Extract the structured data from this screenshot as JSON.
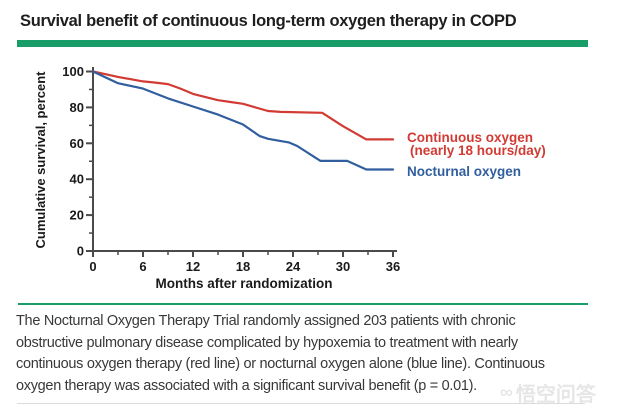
{
  "header": {
    "title": "Survival benefit of continuous long-term oxygen therapy in COPD"
  },
  "chart_data": {
    "type": "line",
    "title": "",
    "xlabel": "Months after randomization",
    "ylabel": "Cumulative survival, percent",
    "xlim": [
      0,
      36
    ],
    "ylim": [
      0,
      100
    ],
    "xticks_major": [
      0,
      6,
      12,
      18,
      24,
      30,
      36
    ],
    "xticks_minor": [
      3,
      9,
      15,
      21,
      27,
      33
    ],
    "yticks_major": [
      0,
      20,
      40,
      60,
      80,
      100
    ],
    "yticks_minor": [
      10,
      30,
      50,
      70,
      90
    ],
    "grid": false,
    "legend_position": "right of line ends",
    "series": [
      {
        "name": "Continuous oxygen (nearly 18 hours/day)",
        "legend_lines": [
          "Continuous oxygen",
          "(nearly 18 hours/day)"
        ],
        "color": "#d23b33",
        "points": [
          [
            0,
            100
          ],
          [
            1.5,
            98.5
          ],
          [
            3,
            97
          ],
          [
            6,
            94.5
          ],
          [
            7.5,
            93.8
          ],
          [
            9,
            93
          ],
          [
            10.5,
            90.5
          ],
          [
            12,
            87.5
          ],
          [
            15,
            84
          ],
          [
            16.5,
            83
          ],
          [
            18,
            82
          ],
          [
            21,
            78
          ],
          [
            22.5,
            77.5
          ],
          [
            27.5,
            77
          ],
          [
            30,
            69.5
          ],
          [
            32.8,
            62.2
          ],
          [
            36,
            62.2
          ]
        ]
      },
      {
        "name": "Nocturnal oxygen",
        "legend_lines": [
          "Nocturnal oxygen"
        ],
        "color": "#305e9e",
        "points": [
          [
            0,
            100
          ],
          [
            3,
            93.5
          ],
          [
            6,
            90.5
          ],
          [
            9,
            85
          ],
          [
            12,
            80.5
          ],
          [
            15,
            76
          ],
          [
            18,
            70.5
          ],
          [
            20,
            64
          ],
          [
            21,
            62.5
          ],
          [
            23.5,
            60.5
          ],
          [
            24.5,
            58.5
          ],
          [
            27.3,
            50.2
          ],
          [
            30.5,
            50.2
          ],
          [
            32.8,
            45.4
          ],
          [
            36,
            45.4
          ]
        ]
      }
    ]
  },
  "caption": {
    "lines": [
      "The Nocturnal Oxygen Therapy Trial randomly assigned 203 patients with chronic",
      "obstructive pulmonary disease complicated by hypoxemia to treatment with nearly",
      "continuous oxygen therapy (red line) or nocturnal oxygen alone (blue line). Continuous",
      "oxygen therapy was associated with a significant survival benefit (p = 0.01)."
    ]
  },
  "watermark": {
    "icon": "wukong-logo",
    "text": "悟空问答"
  },
  "colors": {
    "accent_green": "#189c68",
    "series_red": "#d23b33",
    "series_blue": "#305e9e",
    "axis": "#4a4a4a",
    "chart_text": "#1a1a1a",
    "title_text": "#1e1e1e",
    "caption_text": "#383838",
    "watermark": "#c9c9c9"
  }
}
